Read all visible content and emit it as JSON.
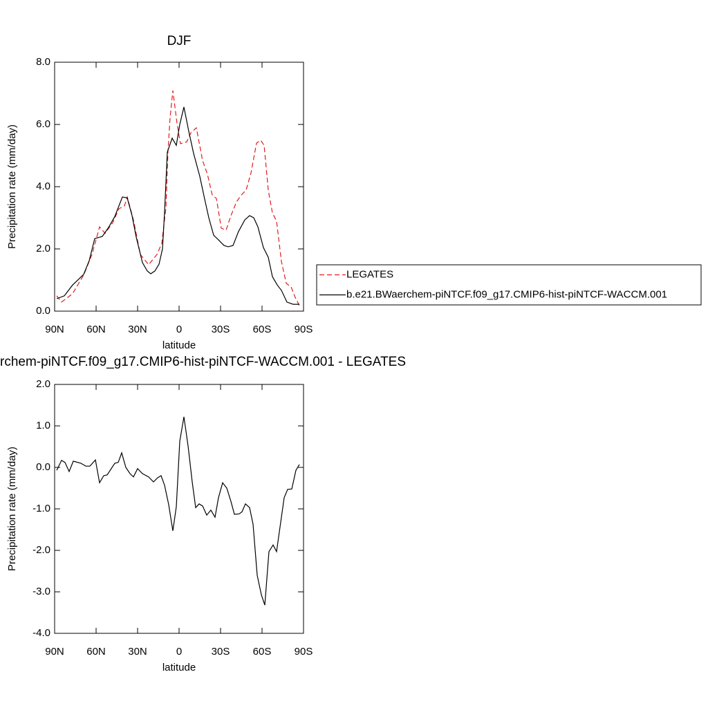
{
  "chart_data": [
    {
      "type": "line",
      "title": "DJF",
      "xlabel": "latitude",
      "ylabel": "Precipitation rate (mm/day)",
      "xlim": [
        90,
        -90
      ],
      "ylim": [
        0,
        8
      ],
      "xticks": [
        {
          "value": 90,
          "label": "90N"
        },
        {
          "value": 60,
          "label": "60N"
        },
        {
          "value": 30,
          "label": "30N"
        },
        0,
        {
          "value": -30,
          "label": "30S"
        },
        {
          "value": -60,
          "label": "60S"
        },
        {
          "value": -90,
          "label": "90S"
        }
      ],
      "yticks": [
        {
          "value": 0,
          "label": "0.0"
        },
        {
          "value": 2,
          "label": "2.0"
        },
        {
          "value": 4,
          "label": "4.0"
        },
        {
          "value": 6,
          "label": "6.0"
        },
        {
          "value": 8,
          "label": "8.0"
        }
      ],
      "legend": "right",
      "series": [
        {
          "name": "LEGATES",
          "color": "#e41a1c",
          "style": "dashed",
          "x": [
            88.5,
            85,
            77,
            69,
            63,
            57.5,
            53.5,
            48,
            43.5,
            39.5,
            37.5,
            33,
            28,
            22,
            16,
            12.5,
            9.5,
            8,
            6.5,
            4.5,
            1.5,
            -1,
            -5.5,
            -8.5,
            -12.5,
            -17,
            -20.5,
            -24,
            -27,
            -30.5,
            -34,
            -37.5,
            -41.5,
            -45,
            -48.5,
            -52,
            -56,
            -59,
            -61.5,
            -64.5,
            -67.5,
            -70.5,
            -74,
            -77.5,
            -81,
            -84,
            -87
          ],
          "values": [
            0.49,
            0.29,
            0.56,
            1.16,
            1.82,
            2.71,
            2.5,
            2.84,
            3.29,
            3.38,
            3.67,
            2.93,
            1.82,
            1.49,
            1.82,
            2.18,
            3.33,
            5.16,
            6.22,
            7.09,
            6.04,
            5.38,
            5.44,
            5.73,
            5.89,
            4.84,
            4.4,
            3.73,
            3.62,
            2.67,
            2.6,
            3.07,
            3.51,
            3.73,
            3.89,
            4.44,
            5.4,
            5.49,
            5.33,
            3.89,
            3.16,
            2.89,
            1.6,
            0.89,
            0.78,
            0.44,
            0.18
          ]
        },
        {
          "name": "b.e21.BWaerchem-piNTCF.f09_g17.CMIP6-hist-piNTCF-WACCM.001",
          "color": "#000000",
          "style": "solid",
          "x": [
            88.5,
            83,
            77,
            69,
            65,
            61,
            55.5,
            51,
            46.5,
            41,
            37.5,
            34,
            31,
            26.5,
            23,
            20.5,
            17.5,
            14.5,
            12,
            10.5,
            8.5,
            5,
            2,
            -0.5,
            -3.5,
            -7,
            -10.5,
            -15,
            -18.5,
            -21.5,
            -25,
            -28.5,
            -32.5,
            -35.5,
            -39,
            -43,
            -47.5,
            -51,
            -54,
            -57,
            -61,
            -64.5,
            -67.5,
            -71,
            -74,
            -78,
            -82.5,
            -87
          ],
          "values": [
            0.4,
            0.49,
            0.84,
            1.18,
            1.62,
            2.33,
            2.4,
            2.69,
            3.04,
            3.67,
            3.64,
            3.07,
            2.38,
            1.56,
            1.29,
            1.2,
            1.29,
            1.51,
            2.0,
            3.18,
            5.11,
            5.56,
            5.33,
            6.0,
            6.56,
            5.78,
            5.07,
            4.33,
            3.6,
            3.0,
            2.44,
            2.29,
            2.11,
            2.07,
            2.11,
            2.56,
            2.93,
            3.07,
            3.0,
            2.71,
            2.04,
            1.73,
            1.11,
            0.84,
            0.67,
            0.29,
            0.22,
            0.22
          ]
        }
      ]
    },
    {
      "type": "line",
      "title": "rchem-piNTCF.f09_g17.CMIP6-hist-piNTCF-WACCM.001 - LEGATES",
      "xlabel": "latitude",
      "ylabel": "Precipitation rate (mm/day)",
      "xlim": [
        90,
        -90
      ],
      "ylim": [
        -4,
        2
      ],
      "xticks": [
        {
          "value": 90,
          "label": "90N"
        },
        {
          "value": 60,
          "label": "60N"
        },
        {
          "value": 30,
          "label": "30N"
        },
        0,
        {
          "value": -30,
          "label": "30S"
        },
        {
          "value": -60,
          "label": "60S"
        },
        {
          "value": -90,
          "label": "90S"
        }
      ],
      "yticks": [
        {
          "value": -4,
          "label": "-4.0"
        },
        {
          "value": -3,
          "label": "-3.0"
        },
        {
          "value": -2,
          "label": "-2.0"
        },
        {
          "value": -1,
          "label": "-1.0"
        },
        {
          "value": 0,
          "label": "0.0"
        },
        {
          "value": 1,
          "label": "1.0"
        },
        {
          "value": 2,
          "label": "2.0"
        }
      ],
      "series": [
        {
          "color": "#000000",
          "style": "solid",
          "x": [
            88.5,
            85,
            82.5,
            79.5,
            76.5,
            71,
            67.5,
            64.5,
            60.5,
            57.5,
            54.5,
            52,
            46.5,
            44,
            41.5,
            38.5,
            35.5,
            33,
            30,
            26.5,
            22,
            18.5,
            15.5,
            13,
            10.5,
            7.5,
            4.5,
            2,
            -0.5,
            -3.5,
            -6.5,
            -9.5,
            -12,
            -14.5,
            -17,
            -20,
            -23,
            -26,
            -28.5,
            -31.5,
            -34.5,
            -37.5,
            -40,
            -43.5,
            -45.5,
            -48,
            -51,
            -53.5,
            -56.5,
            -59.5,
            -62,
            -65,
            -68,
            -70.5,
            -73.5,
            -76,
            -78.5,
            -81.5,
            -84.5,
            -87
          ],
          "values": [
            -0.07,
            0.17,
            0.12,
            -0.1,
            0.15,
            0.1,
            0.03,
            0.03,
            0.18,
            -0.37,
            -0.2,
            -0.18,
            0.1,
            0.12,
            0.35,
            0,
            -0.15,
            -0.23,
            -0.03,
            -0.15,
            -0.23,
            -0.35,
            -0.25,
            -0.2,
            -0.43,
            -0.9,
            -1.53,
            -0.95,
            0.63,
            1.22,
            0.52,
            -0.35,
            -0.97,
            -0.88,
            -0.93,
            -1.15,
            -1.03,
            -1.2,
            -0.73,
            -0.37,
            -0.5,
            -0.82,
            -1.13,
            -1.12,
            -1.07,
            -0.88,
            -0.97,
            -1.37,
            -2.6,
            -3.07,
            -3.32,
            -2.03,
            -1.87,
            -2.03,
            -1.32,
            -0.73,
            -0.53,
            -0.52,
            -0.07,
            0.07
          ]
        }
      ]
    }
  ]
}
